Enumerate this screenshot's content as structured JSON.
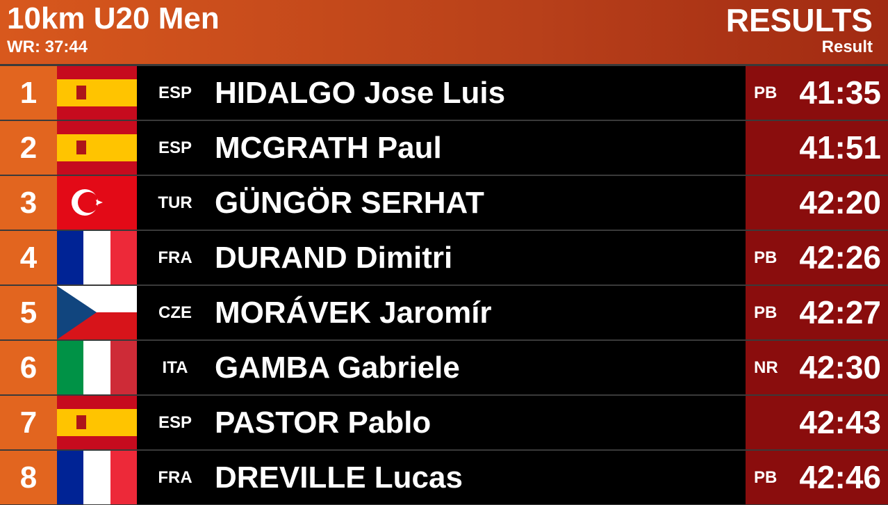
{
  "header": {
    "title": "10km U20 Men",
    "record": "WR: 37:44",
    "heading": "RESULTS",
    "subheading": "Result"
  },
  "table": {
    "rows": [
      {
        "rank": "1",
        "country": "ESP",
        "name": "HIDALGO Jose Luis",
        "note": "PB",
        "time": "41:35"
      },
      {
        "rank": "2",
        "country": "ESP",
        "name": "MCGRATH Paul",
        "time": "41:51"
      },
      {
        "rank": "3",
        "country": "TUR",
        "name": "GÜNGÖR SERHAT",
        "time": "42:20"
      },
      {
        "rank": "4",
        "country": "FRA",
        "name": "DURAND Dimitri",
        "note": "PB",
        "time": "42:26"
      },
      {
        "rank": "5",
        "country": "CZE",
        "name": "MORÁVEK Jaromír",
        "note": "PB",
        "time": "42:27"
      },
      {
        "rank": "6",
        "country": "ITA",
        "name": "GAMBA Gabriele",
        "note": "NR",
        "time": "42:30"
      },
      {
        "rank": "7",
        "country": "ESP",
        "name": "PASTOR Pablo",
        "time": "42:43"
      },
      {
        "rank": "8",
        "country": "FRA",
        "name": "DREVILLE Lucas",
        "note": "PB",
        "time": "42:46"
      }
    ]
  }
}
